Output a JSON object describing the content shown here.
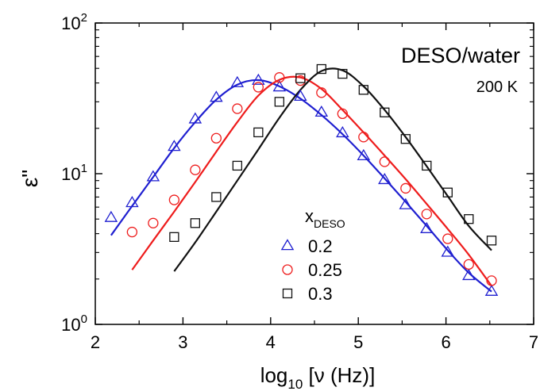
{
  "chart_data": {
    "type": "scatter",
    "annotations": {
      "system": "DESO/water",
      "temperature": "200 K"
    },
    "xlabel": {
      "base": "log",
      "sub": "10",
      "rest": " [ν (Hz)]"
    },
    "ylabel": "ε\"",
    "x_scale": "linear",
    "y_scale": "log",
    "xlim": [
      2,
      7
    ],
    "ylim": [
      1,
      100
    ],
    "x_ticks": [
      "2",
      "3",
      "4",
      "5",
      "6",
      "7"
    ],
    "y_ticks": [
      {
        "value": 1,
        "base": "10",
        "exp": "0"
      },
      {
        "value": 10,
        "base": "10",
        "exp": "1"
      },
      {
        "value": 100,
        "base": "10",
        "exp": "2"
      }
    ],
    "legend": {
      "title": {
        "main": "x",
        "sub": "DESO"
      },
      "placement": "center"
    },
    "series": [
      {
        "name": "0.2",
        "color": "#1f1fd0",
        "marker": "triangle",
        "x": [
          2.18,
          2.42,
          2.66,
          2.9,
          3.14,
          3.38,
          3.62,
          3.86,
          4.1,
          4.34,
          4.58,
          4.82,
          5.06,
          5.3,
          5.54,
          5.78,
          6.02,
          6.26,
          6.52
        ],
        "y": [
          5.1,
          6.4,
          9.5,
          15.1,
          23.0,
          32.0,
          40.0,
          41.5,
          37.5,
          32.5,
          25.5,
          18.6,
          13.1,
          9.1,
          6.2,
          4.3,
          3.0,
          2.1,
          1.65
        ],
        "fit": {
          "x": [
            2.18,
            2.42,
            2.66,
            2.9,
            3.14,
            3.38,
            3.62,
            3.86,
            4.1,
            4.34,
            4.58,
            4.82,
            5.06,
            5.3,
            5.54,
            5.78,
            6.02,
            6.26,
            6.52
          ],
          "y": [
            3.9,
            6.1,
            9.5,
            14.8,
            22.0,
            31.0,
            39.0,
            41.8,
            38.0,
            31.5,
            24.5,
            18.3,
            13.2,
            9.3,
            6.5,
            4.5,
            3.1,
            2.2,
            1.65
          ]
        }
      },
      {
        "name": "0.25",
        "color": "#ee1c1c",
        "marker": "circle",
        "x": [
          2.42,
          2.66,
          2.9,
          3.14,
          3.38,
          3.62,
          3.86,
          4.1,
          4.34,
          4.58,
          4.82,
          5.06,
          5.3,
          5.54,
          5.78,
          6.02,
          6.26,
          6.52
        ],
        "y": [
          4.1,
          4.7,
          6.7,
          10.6,
          17.2,
          27.0,
          37.5,
          43.5,
          41.5,
          34.5,
          25.0,
          17.5,
          12.0,
          8.0,
          5.4,
          3.7,
          2.5,
          1.95
        ],
        "fit": {
          "x": [
            2.42,
            2.66,
            2.9,
            3.14,
            3.38,
            3.62,
            3.86,
            4.1,
            4.34,
            4.58,
            4.82,
            5.06,
            5.3,
            5.54,
            5.78,
            6.02,
            6.26,
            6.52
          ],
          "y": [
            2.3,
            3.6,
            5.6,
            8.8,
            14.0,
            22.0,
            33.0,
            42.0,
            43.5,
            36.5,
            26.5,
            18.8,
            13.2,
            9.2,
            6.3,
            4.3,
            2.9,
            1.8
          ]
        }
      },
      {
        "name": "0.3",
        "color": "#111111",
        "marker": "square",
        "x": [
          2.9,
          3.14,
          3.38,
          3.62,
          3.86,
          4.1,
          4.34,
          4.58,
          4.82,
          5.06,
          5.3,
          5.54,
          5.78,
          6.02,
          6.26,
          6.52
        ],
        "y": [
          3.8,
          4.7,
          7.0,
          11.3,
          18.8,
          30.0,
          43.0,
          49.5,
          46.0,
          36.0,
          25.5,
          17.0,
          11.3,
          7.5,
          5.0,
          3.6
        ],
        "fit": {
          "x": [
            2.9,
            3.14,
            3.38,
            3.62,
            3.86,
            4.1,
            4.34,
            4.58,
            4.82,
            5.06,
            5.3,
            5.54,
            5.78,
            6.02,
            6.26,
            6.52
          ],
          "y": [
            2.25,
            3.5,
            5.6,
            9.0,
            14.5,
            23.5,
            36.0,
            48.0,
            48.5,
            38.0,
            26.5,
            17.5,
            11.2,
            7.1,
            4.5,
            3.1
          ]
        }
      }
    ]
  }
}
